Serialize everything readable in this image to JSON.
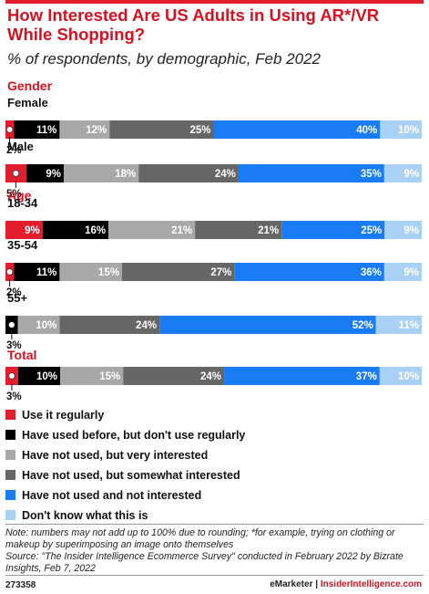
{
  "title": "How Interested Are US Adults in Using AR*/VR While Shopping?",
  "subtitle": "% of respondents, by demographic, Feb 2022",
  "chart_data": {
    "type": "bar",
    "stacked": true,
    "orientation": "horizontal",
    "colors": [
      "#e11d2e",
      "#000000",
      "#a8a8a8",
      "#666666",
      "#1a7cf5",
      "#a9d1f5"
    ],
    "series_names": [
      "Use it regularly",
      "Have used before, but don't use regularly",
      "Have not used, but very interested",
      "Have not used, but somewhat interested",
      "Have not used and not interested",
      "Don't know what this is"
    ],
    "groups": [
      {
        "label": "Gender",
        "rows": [
          {
            "label": "Female",
            "values": [
              2,
              11,
              12,
              25,
              40,
              10
            ],
            "labels": [
              "2%",
              "11%",
              "12%",
              "25%",
              "40%",
              "10%"
            ]
          },
          {
            "label": "Male",
            "values": [
              5,
              9,
              18,
              24,
              35,
              9
            ],
            "labels": [
              "5%",
              "9%",
              "18%",
              "24%",
              "35%",
              "9%"
            ]
          }
        ]
      },
      {
        "label": "Age",
        "rows": [
          {
            "label": "18-34",
            "values": [
              9,
              16,
              21,
              21,
              25,
              9
            ],
            "labels": [
              "9%",
              "16%",
              "21%",
              "21%",
              "25%",
              "9%"
            ]
          },
          {
            "label": "35-54",
            "values": [
              2,
              11,
              15,
              27,
              36,
              9
            ],
            "labels": [
              "2%",
              "11%",
              "15%",
              "27%",
              "36%",
              "9%"
            ]
          },
          {
            "label": "55+",
            "values": [
              0,
              3,
              10,
              24,
              52,
              11
            ],
            "labels": [
              "",
              "3%",
              "10%",
              "24%",
              "52%",
              "11%"
            ]
          }
        ]
      },
      {
        "label": "Total",
        "rows": [
          {
            "label": "",
            "values": [
              3,
              10,
              15,
              24,
              37,
              10
            ],
            "labels": [
              "3%",
              "10%",
              "15%",
              "24%",
              "37%",
              "10%"
            ]
          }
        ]
      }
    ]
  },
  "note": "Note: numbers may not add up to 100% due to rounding; *for example, trying on clothing or makeup by superimposing an image onto themselves",
  "source": "Source: \"The Insider Intelligence Ecommerce Survey\" conducted in February 2022 by Bizrate Insights, Feb 7, 2022",
  "footer": {
    "id": "273358",
    "brand1": "eMarketer",
    "separator": "|",
    "brand2": "InsiderIntelligence.com"
  }
}
